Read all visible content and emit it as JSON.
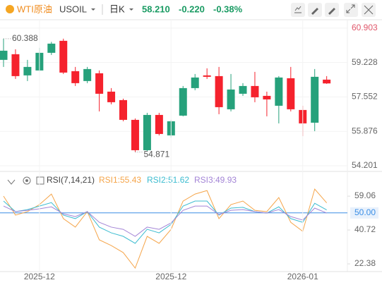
{
  "header": {
    "symbol_name": "WTI原油",
    "symbol": "USOIL",
    "period": "日K",
    "price": "58.210",
    "change": "-0.220",
    "change_pct": "-0.38%"
  },
  "chart_data": [
    {
      "type": "candlestick",
      "open": [
        59.357,
        59.632,
        58.601,
        58.841,
        59.7,
        60.284,
        58.807,
        58.326,
        58.704,
        57.81,
        57.398,
        56.436,
        54.958,
        56.676,
        55.68,
        56.642,
        57.982,
        58.601,
        58.566,
        56.951,
        57.707,
        58.085,
        57.604,
        57.123,
        58.463,
        56.917,
        56.298,
        58.394
      ],
      "high": [
        60.388,
        59.872,
        59.357,
        59.941,
        60.233,
        60.388,
        59.013,
        59.013,
        58.841,
        57.982,
        57.467,
        56.504,
        56.779,
        56.779,
        56.436,
        58.085,
        58.669,
        58.945,
        59.013,
        58.669,
        58.223,
        58.772,
        57.81,
        58.566,
        59.013,
        57.123,
        58.91,
        58.566
      ],
      "low": [
        59.013,
        58.429,
        58.326,
        58.8,
        59.597,
        58.669,
        58.085,
        58.223,
        56.848,
        57.192,
        56.367,
        54.871,
        54.89,
        55.68,
        55.577,
        56.608,
        57.879,
        58.429,
        56.711,
        56.848,
        57.604,
        57.295,
        56.608,
        56.264,
        56.848,
        55.645,
        55.886,
        58.188
      ],
      "close": [
        59.803,
        58.566,
        59.013,
        59.7,
        60.147,
        58.738,
        58.223,
        58.91,
        57.707,
        57.295,
        56.436,
        54.958,
        56.676,
        55.749,
        56.367,
        57.982,
        58.498,
        58.532,
        57.054,
        57.913,
        58.085,
        57.535,
        57.432,
        58.498,
        56.951,
        56.264,
        58.532,
        58.21
      ],
      "up_color": "#26a17b",
      "down_color": "#f5222d",
      "ylim": [
        53.96,
        61.31
      ],
      "yticks": [
        60.903,
        59.228,
        57.552,
        55.876,
        54.201
      ],
      "grid": true
    },
    {
      "type": "line",
      "title": "RSI(7,14,21)",
      "categories": [
        null,
        null,
        null,
        "2025-12",
        null,
        null,
        null,
        null,
        null,
        null,
        null,
        null,
        null,
        null,
        "2025-12",
        null,
        null,
        null,
        null,
        null,
        null,
        null,
        null,
        null,
        null,
        "2026-01",
        null,
        null
      ],
      "series": [
        {
          "name": "RSI1:55.43",
          "color": "#f5a54a",
          "values": [
            59.1,
            48.8,
            50.7,
            54.5,
            60.2,
            46.9,
            42.3,
            50.7,
            35.4,
            32.3,
            28.5,
            20.1,
            37.3,
            33.5,
            41.1,
            56.4,
            60.2,
            62.1,
            46.9,
            54.5,
            56.4,
            51.4,
            50.7,
            58.3,
            44.9,
            40.0,
            62.9,
            55.43
          ]
        },
        {
          "name": "RSI2:51.62",
          "color": "#3cbcd0",
          "values": [
            56.4,
            50.7,
            51.8,
            53.7,
            55.6,
            48.8,
            46.9,
            50.7,
            42.3,
            39.2,
            37.3,
            33.5,
            41.1,
            39.2,
            43.8,
            53.7,
            56.4,
            56.4,
            48.8,
            52.6,
            53.0,
            50.7,
            49.9,
            53.3,
            46.9,
            44.9,
            55.2,
            51.62
          ]
        },
        {
          "name": "RSI3:49.93",
          "color": "#a384d6",
          "values": [
            53.7,
            50.7,
            51.4,
            52.2,
            53.3,
            49.5,
            48.0,
            50.7,
            44.9,
            42.3,
            41.1,
            37.3,
            42.3,
            41.1,
            44.6,
            51.4,
            53.7,
            53.7,
            49.1,
            51.4,
            51.8,
            50.7,
            49.9,
            51.8,
            48.0,
            46.1,
            52.6,
            49.93
          ]
        }
      ],
      "ylim": [
        18.2,
        71.7
      ],
      "yticks": [
        59.06,
        {
          "value": 50,
          "label": "50.00"
        },
        40.72,
        22.38
      ],
      "reference_line": {
        "value": 50,
        "color": "#3a8ee6"
      }
    }
  ]
}
